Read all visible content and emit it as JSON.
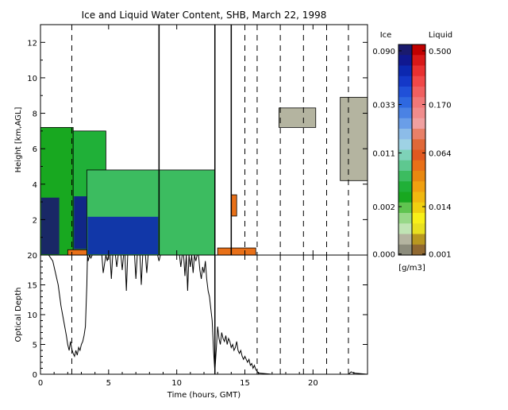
{
  "chart_data": [
    {
      "type": "heatmap",
      "title": "Ice and Liquid Water Content, SHB, March 22, 1998",
      "xlabel": "",
      "ylabel": "Height [km,AGL]",
      "xlim": [
        0,
        24
      ],
      "ylim": [
        0,
        13
      ],
      "x_ticks": [
        0,
        5,
        10,
        15,
        20
      ],
      "y_ticks": [
        2,
        4,
        6,
        8,
        10,
        12
      ],
      "y_tick_labels": [
        "2",
        "4",
        "6",
        "8",
        "10",
        "12"
      ],
      "cloud_layers": [
        {
          "kind": "ice",
          "x_start": 0.0,
          "x_end": 2.4,
          "base": 0.0,
          "top": 7.2
        },
        {
          "kind": "ice",
          "x_start": 2.4,
          "x_end": 4.8,
          "base": 0.3,
          "top": 7.0
        },
        {
          "kind": "ice",
          "x_start": 3.4,
          "x_end": 12.8,
          "base": 0.0,
          "top": 4.8
        },
        {
          "kind": "liquid",
          "x_start": 2.0,
          "x_end": 3.4,
          "base": 0.0,
          "top": 0.3
        },
        {
          "kind": "liquid",
          "x_start": 13.0,
          "x_end": 15.8,
          "base": 0.0,
          "top": 0.4
        },
        {
          "kind": "liquid",
          "x_start": 14.0,
          "x_end": 14.4,
          "base": 2.2,
          "top": 3.4
        },
        {
          "kind": "ice",
          "x_start": 17.5,
          "x_end": 20.2,
          "base": 7.2,
          "top": 8.3
        },
        {
          "kind": "ice",
          "x_start": 22.0,
          "x_end": 24.0,
          "base": 4.2,
          "top": 8.9
        }
      ],
      "solid_lines_x": [
        8.7,
        12.8,
        14.0
      ],
      "dashed_lines_x": [
        2.3,
        15.0,
        15.9,
        17.6,
        19.3,
        21.0,
        22.6
      ],
      "colorbar": {
        "ice_label": "Ice",
        "liquid_label": "Liquid",
        "units": "[g/m3]",
        "ice_ticks": [
          "0.090",
          "0.033",
          "0.011",
          "0.002",
          "0.000"
        ],
        "liquid_ticks": [
          "0.500",
          "0.170",
          "0.064",
          "0.014",
          "0.001"
        ],
        "ice_colors": [
          "#1a1a6e",
          "#101890",
          "#0c28b0",
          "#1438c8",
          "#2050d8",
          "#2e68e0",
          "#4a82e4",
          "#6a9ee8",
          "#8cbce8",
          "#9ed2e4",
          "#7ed2b8",
          "#5ec890",
          "#3cbc60",
          "#20b038",
          "#18a820",
          "#60c450",
          "#98d888",
          "#c0e4b4",
          "#b4b4a0",
          "#8c8c7c"
        ],
        "liquid_colors": [
          "#c00000",
          "#d81818",
          "#e83030",
          "#f04848",
          "#f06060",
          "#f07878",
          "#f08c8c",
          "#f0a0a0",
          "#e88068",
          "#e06838",
          "#e05820",
          "#e87018",
          "#e88810",
          "#f0a010",
          "#f0b810",
          "#f0d010",
          "#f8f018",
          "#e8e020",
          "#b89820",
          "#906830"
        ]
      }
    },
    {
      "type": "line",
      "title": "",
      "xlabel": "Time (hours, GMT)",
      "ylabel": "Optical Depth",
      "xlim": [
        0,
        24
      ],
      "ylim": [
        0,
        20
      ],
      "x_ticks": [
        0,
        5,
        10,
        15,
        20
      ],
      "x_tick_labels": [
        "0",
        "5",
        "10",
        "15",
        "20"
      ],
      "y_ticks": [
        0,
        5,
        10,
        15,
        20
      ],
      "y_tick_labels": [
        "0",
        "5",
        "10",
        "15",
        "20"
      ],
      "series": [
        {
          "x": [
            0.0,
            0.3,
            0.6,
            0.9,
            1.1,
            1.3,
            1.5,
            1.7,
            1.9,
            2.0,
            2.1,
            2.2,
            2.3,
            2.4,
            2.5,
            2.6,
            2.7,
            2.8,
            2.9,
            3.0,
            3.1,
            3.2,
            3.3,
            3.4,
            3.45,
            3.5,
            3.6,
            3.7,
            3.8,
            4.0,
            4.2,
            4.5,
            4.6,
            4.7,
            4.8,
            4.9,
            5.0,
            5.1,
            5.2,
            5.3,
            5.4,
            5.5,
            5.6,
            5.7,
            5.8,
            5.9,
            6.0,
            6.1,
            6.2,
            6.3,
            6.4,
            6.5,
            6.6,
            6.7,
            6.8,
            6.9,
            7.0,
            7.1,
            7.2,
            7.3,
            7.4,
            7.5,
            7.6,
            7.7,
            7.8,
            7.9,
            8.0,
            8.2,
            8.4,
            8.6,
            8.7,
            8.8,
            8.9,
            9.0,
            9.2,
            9.4,
            9.6,
            9.8,
            10.0,
            10.2,
            10.3,
            10.4,
            10.5,
            10.6,
            10.7,
            10.8,
            10.9,
            11.0,
            11.1,
            11.2,
            11.3,
            11.4,
            11.5,
            11.6,
            11.7,
            11.8,
            11.9,
            12.0,
            12.1,
            12.2,
            12.3,
            12.4,
            12.5,
            12.6,
            12.7,
            12.8,
            12.9,
            13.0,
            13.1,
            13.2,
            13.3,
            13.4,
            13.5,
            13.6,
            13.7,
            13.8,
            13.9,
            14.0,
            14.1,
            14.2,
            14.3,
            14.4,
            14.5,
            14.6,
            14.7,
            14.8,
            14.9,
            15.0,
            15.1,
            15.2,
            15.3,
            15.4,
            15.5,
            15.6,
            15.7,
            15.8,
            15.9,
            16.0,
            17.0,
            19.0,
            21.0,
            22.6,
            22.7,
            22.8,
            22.9,
            23.0,
            24.0
          ],
          "y": [
            20,
            20,
            20,
            19.0,
            17.0,
            15.0,
            11.5,
            9.0,
            6.5,
            5.0,
            4.0,
            5.5,
            4.2,
            3.5,
            3.0,
            4.0,
            3.2,
            4.5,
            4.0,
            5.0,
            5.5,
            6.5,
            8.0,
            15.0,
            20,
            19.0,
            20,
            19.5,
            20,
            20,
            20,
            20,
            17.0,
            18.5,
            20,
            19.0,
            20,
            20,
            16.0,
            20,
            20,
            20,
            18.0,
            20,
            20,
            20,
            17.5,
            20,
            20,
            14.0,
            20,
            20,
            20,
            20,
            20,
            20,
            16.0,
            20,
            20,
            20,
            15.0,
            20,
            20,
            20,
            17.0,
            20,
            20,
            20,
            20,
            20,
            19.0,
            20,
            20,
            20,
            20,
            20,
            20,
            20,
            20,
            20,
            18.0,
            20,
            20,
            16.5,
            20,
            14.0,
            20,
            18.0,
            20,
            17.0,
            20,
            19.0,
            20,
            20,
            17.5,
            16.0,
            18.0,
            17.0,
            19.0,
            16.0,
            14.0,
            13.0,
            11.0,
            9.0,
            4.0,
            0.5,
            4.0,
            8.0,
            6.0,
            5.0,
            7.0,
            6.0,
            5.5,
            6.5,
            5.0,
            6.0,
            5.5,
            4.5,
            5.0,
            4.0,
            4.5,
            5.5,
            4.0,
            3.5,
            4.0,
            3.0,
            2.5,
            3.0,
            2.5,
            2.0,
            2.5,
            1.5,
            1.8,
            1.0,
            1.5,
            0.8,
            0.5,
            0.2,
            0.0,
            0.0,
            0.0,
            0.0,
            0.2,
            0.4,
            0.3,
            0.2,
            0.0
          ]
        }
      ],
      "solid_lines_x": [
        12.8
      ],
      "dashed_lines_x": [
        2.3,
        15.9,
        17.6,
        19.3,
        21.0,
        22.6
      ]
    }
  ]
}
